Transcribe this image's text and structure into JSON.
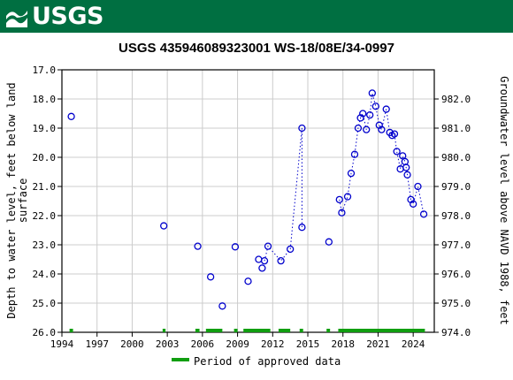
{
  "header": {
    "logo_text": "USGS"
  },
  "chart_data": {
    "type": "scatter",
    "title": "USGS 435946089323001 WS-18/08E/34-0997",
    "ylabel_left": [
      "Depth to water level, feet below land",
      "surface"
    ],
    "ylabel_right": "Groundwater level above NAVD 1988, feet",
    "x_ticks": [
      "1994",
      "1997",
      "2000",
      "2003",
      "2006",
      "2009",
      "2012",
      "2015",
      "2018",
      "2021",
      "2024"
    ],
    "y_left_ticks": [
      "17.0",
      "18.0",
      "19.0",
      "20.0",
      "21.0",
      "22.0",
      "23.0",
      "24.0",
      "25.0",
      "26.0"
    ],
    "y_right_ticks": [
      "974.0",
      "975.0",
      "976.0",
      "977.0",
      "978.0",
      "979.0",
      "980.0",
      "981.0",
      "982.0"
    ],
    "xlim": [
      1994,
      2025.8
    ],
    "ylim_left": [
      17.0,
      26.0
    ],
    "ylim_right": [
      974.0,
      983.0
    ],
    "grid": true,
    "legend_label": "Period of approved data",
    "legend_position": "bottom",
    "marker_color": "#0000cc",
    "approved_color": "#109e10",
    "series": [
      {
        "points": [
          [
            1994.8,
            18.6
          ],
          [
            2002.7,
            22.35
          ],
          [
            2005.6,
            23.05
          ],
          [
            2006.7,
            24.1
          ],
          [
            2007.7,
            25.1
          ],
          [
            2008.8,
            23.07
          ],
          [
            2009.9,
            24.25
          ],
          [
            2010.8,
            23.5
          ],
          [
            2011.1,
            23.8
          ],
          [
            2011.3,
            23.55
          ],
          [
            2011.6,
            23.05
          ],
          [
            2012.7,
            23.55
          ],
          [
            2013.5,
            23.15
          ],
          [
            2014.5,
            19.0
          ],
          [
            2014.5,
            22.4
          ],
          [
            2016.8,
            22.9
          ],
          [
            2017.7,
            21.45
          ],
          [
            2017.9,
            21.9
          ],
          [
            2018.4,
            21.35
          ],
          [
            2018.7,
            20.55
          ],
          [
            2019.0,
            19.9
          ],
          [
            2019.3,
            19.0
          ],
          [
            2019.5,
            18.65
          ],
          [
            2019.7,
            18.5
          ],
          [
            2020.0,
            19.05
          ],
          [
            2020.3,
            18.55
          ],
          [
            2020.5,
            17.8
          ],
          [
            2020.8,
            18.25
          ],
          [
            2021.1,
            18.9
          ],
          [
            2021.3,
            19.05
          ],
          [
            2021.7,
            18.35
          ],
          [
            2022.0,
            19.15
          ],
          [
            2022.2,
            19.25
          ],
          [
            2022.4,
            19.2
          ],
          [
            2022.6,
            19.8
          ],
          [
            2022.9,
            20.4
          ],
          [
            2023.1,
            19.95
          ],
          [
            2023.3,
            20.15
          ],
          [
            2023.4,
            20.35
          ],
          [
            2023.5,
            20.6
          ],
          [
            2023.8,
            21.45
          ],
          [
            2024.0,
            21.6
          ],
          [
            2024.4,
            21.0
          ],
          [
            2024.9,
            21.95
          ]
        ]
      }
    ],
    "dotted_segments": [
      [
        9,
        14
      ],
      [
        16,
        43
      ]
    ],
    "approved_periods": [
      [
        1994.65,
        1994.95
      ],
      [
        2002.6,
        2002.85
      ],
      [
        2005.4,
        2005.75
      ],
      [
        2006.3,
        2007.7
      ],
      [
        2008.7,
        2009.0
      ],
      [
        2009.5,
        2011.8
      ],
      [
        2012.5,
        2013.5
      ],
      [
        2014.3,
        2014.6
      ],
      [
        2016.6,
        2016.9
      ],
      [
        2017.6,
        2025.0
      ]
    ]
  }
}
